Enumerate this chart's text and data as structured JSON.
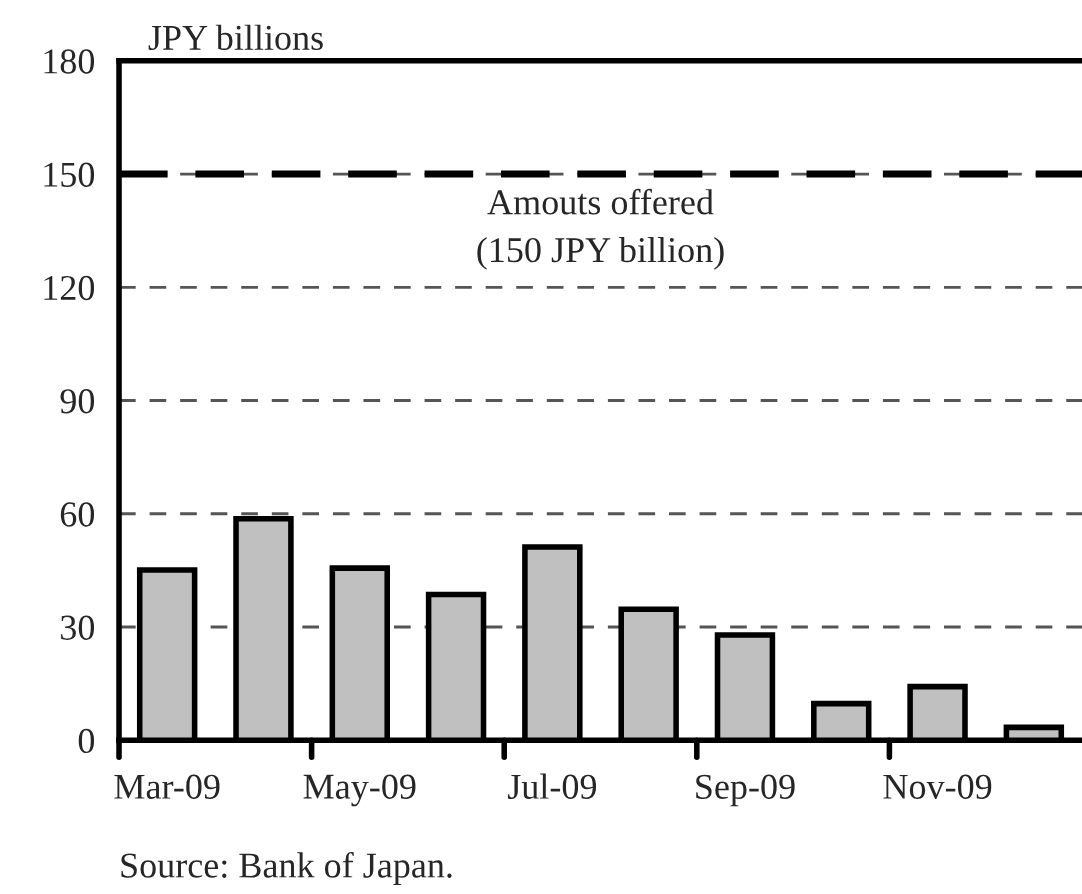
{
  "chart_data": {
    "type": "bar",
    "categories": [
      "Mar-09",
      null,
      "May-09",
      null,
      "Jul-09",
      null,
      "Sep-09",
      null,
      "Nov-09",
      null
    ],
    "values": [
      45.1,
      58.7,
      45.6,
      38.6,
      51.2,
      34.7,
      27.9,
      9.7,
      14.2,
      3.4
    ],
    "color": "#c0c0c0",
    "ylabel": "JPY billions",
    "ylim": [
      0,
      180
    ],
    "yticks": [
      0,
      30,
      60,
      90,
      120,
      150,
      180
    ],
    "grid": "y",
    "ref_lines": [
      {
        "axis": "y",
        "value": 150,
        "label": "Amouts offered\n(150 JPY billion)",
        "color": "#000000",
        "line_style": "dashed"
      }
    ],
    "annotations": [
      "Source: Bank of Japan."
    ]
  }
}
